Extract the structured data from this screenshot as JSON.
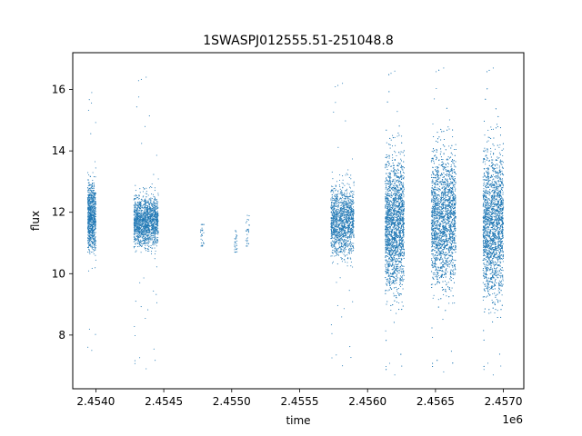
{
  "chart_data": {
    "type": "scatter",
    "title": "1SWASPJ012555.51-251048.8",
    "xlabel": "time",
    "ylabel": "flux",
    "x_offset_label": "1e6",
    "xlim": [
      2.45383,
      2.45715
    ],
    "ylim": [
      6.25,
      17.2
    ],
    "x_ticks": [
      2.454,
      2.4545,
      2.455,
      2.4555,
      2.456,
      2.4565,
      2.457
    ],
    "x_tick_labels": [
      "2.4540",
      "2.4545",
      "2.4550",
      "2.4555",
      "2.4560",
      "2.4565",
      "2.4570"
    ],
    "y_ticks": [
      8,
      10,
      12,
      14,
      16
    ],
    "y_tick_labels": [
      "8",
      "10",
      "12",
      "14",
      "16"
    ],
    "grid": false,
    "color": "#1f77b4",
    "series": [
      {
        "segments": [
          {
            "x": [
              2.45394,
              2.454
            ],
            "median": 11.8,
            "spread": 0.55,
            "min": 7.5,
            "max": 15.9,
            "density": 1.0
          },
          {
            "x": [
              2.45428,
              2.45446
            ],
            "median": 11.7,
            "spread": 0.4,
            "min": 6.9,
            "max": 16.4,
            "density": 1.8
          },
          {
            "x": [
              2.45477,
              2.4548
            ],
            "median": 11.2,
            "spread": 0.25,
            "min": 10.9,
            "max": 11.6,
            "density": 0.03
          },
          {
            "x": [
              2.45502,
              2.45504
            ],
            "median": 11.0,
            "spread": 0.2,
            "min": 10.7,
            "max": 11.4,
            "density": 0.03
          },
          {
            "x": [
              2.4551,
              2.45513
            ],
            "median": 11.3,
            "spread": 0.3,
            "min": 10.9,
            "max": 11.9,
            "density": 0.03
          },
          {
            "x": [
              2.45573,
              2.4559
            ],
            "median": 11.7,
            "spread": 0.55,
            "min": 7.0,
            "max": 16.2,
            "density": 1.6
          },
          {
            "x": [
              2.45613,
              2.45627
            ],
            "median": 11.6,
            "spread": 1.05,
            "min": 6.7,
            "max": 16.6,
            "density": 3.0
          },
          {
            "x": [
              2.45647,
              2.45665
            ],
            "median": 11.8,
            "spread": 1.05,
            "min": 6.8,
            "max": 16.7,
            "density": 3.2
          },
          {
            "x": [
              2.45685,
              2.457
            ],
            "median": 11.6,
            "spread": 1.15,
            "min": 6.7,
            "max": 16.7,
            "density": 3.0
          }
        ]
      }
    ]
  }
}
